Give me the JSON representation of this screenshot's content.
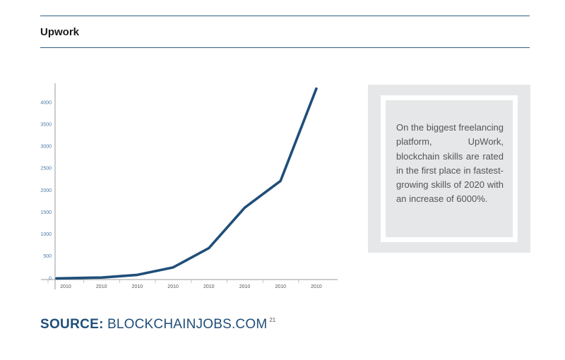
{
  "header": {
    "title": "Upwork"
  },
  "callout": {
    "text": "On the biggest freelancing platform, UpWork, blockchain skills are rated in the first place in fastest-growing skills of 2020 with an increase of 6000%."
  },
  "source": {
    "label": "SOURCE:",
    "site": "BLOCKCHAINJOBS.COM",
    "footnote": "21"
  },
  "colors": {
    "accent": "#1f4e79",
    "rule": "#2d5f86",
    "callout_bg": "#e6e7e8",
    "axis_label": "#4a7aa8"
  },
  "chart_data": {
    "type": "line",
    "title": "",
    "xlabel": "",
    "ylabel": "",
    "categories": [
      "2010",
      "2010",
      "2010",
      "2010",
      "2010",
      "2010",
      "2010",
      "2010"
    ],
    "series": [
      {
        "values": [
          -10,
          10,
          70,
          240,
          680,
          1600,
          2210,
          4310
        ]
      }
    ],
    "yticks": [
      0,
      500,
      1000,
      1500,
      2000,
      2500,
      3000,
      3500,
      4000
    ],
    "ylim": [
      -100,
      4400
    ],
    "grid": false,
    "legend": "none"
  }
}
